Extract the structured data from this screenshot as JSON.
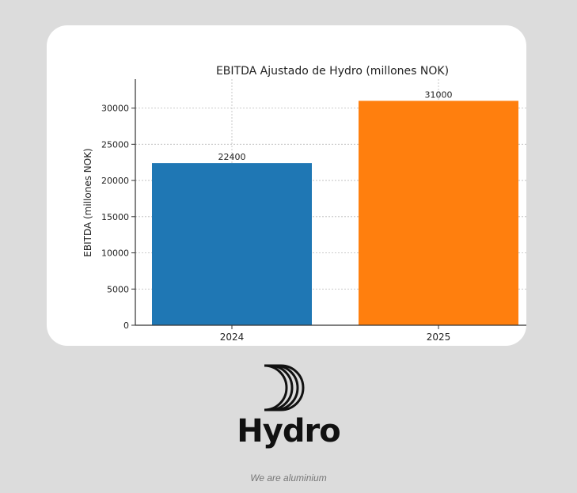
{
  "chart_data": {
    "type": "bar",
    "title": "EBITDA Ajustado de Hydro (millones NOK)",
    "xlabel": "",
    "ylabel": "EBITDA (millones NOK)",
    "categories": [
      "2024",
      "2025"
    ],
    "values": [
      22400,
      31000
    ],
    "data_labels": [
      "22400",
      "31000"
    ],
    "colors": [
      "#1f77b4",
      "#ff7f0e"
    ],
    "ylim": [
      0,
      34000
    ],
    "yticks": [
      0,
      5000,
      10000,
      15000,
      20000,
      25000,
      30000
    ],
    "grid": true
  },
  "brand": {
    "name": "Hydro",
    "tagline": "We are aluminium",
    "logo_icon": "hydro-crescent-icon"
  }
}
